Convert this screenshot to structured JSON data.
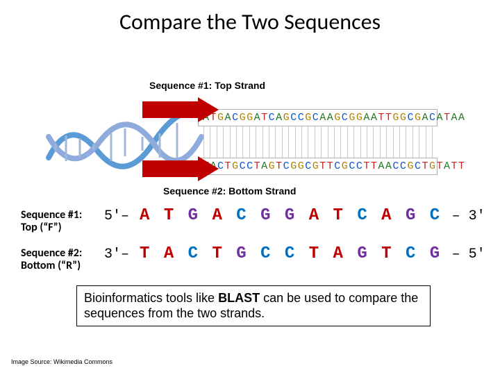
{
  "title": "Compare the Two Sequences",
  "figure": {
    "label_top": "Sequence #1: Top Strand",
    "label_bottom": "Sequence #2: Bottom Strand",
    "top_seq_raw": "ATGACGGATCAGCCGCAAGCGGAATTGGCGACATAA",
    "bot_seq_raw": "TACTGCCTAGTCGGCGTTCGCCTTAACCGCTGTATT",
    "arrow_color": "#c00000",
    "helix_color1": "#5b9bd5",
    "helix_color2": "#8faadc",
    "box_border": "#b0b0b0",
    "base_colors": {
      "A": "#227722",
      "T": "#cc2222",
      "G": "#b08000",
      "C": "#1155cc"
    }
  },
  "rows": [
    {
      "label_l1": "Sequence #1:",
      "label_l2": "Top (“F”)",
      "left_end": "5'–",
      "bases": [
        "A",
        "T",
        "G",
        "A",
        "C",
        "G",
        "G",
        "A",
        "T",
        "C",
        "A",
        "G",
        "C"
      ],
      "right_end": "– 3'"
    },
    {
      "label_l1": "Sequence #2:",
      "label_l2": "Bottom (“R”)",
      "left_end": "3'–",
      "bases": [
        "T",
        "A",
        "C",
        "T",
        "G",
        "C",
        "C",
        "T",
        "A",
        "G",
        "T",
        "C",
        "G"
      ],
      "right_end": "– 5'"
    }
  ],
  "big_base_colors": {
    "A": "#c00000",
    "T": "#c00000",
    "G": "#7030a0",
    "C": "#0070c0"
  },
  "info_line1": "Bioinformatics tools like ",
  "info_bold": "BLAST",
  "info_line2": " can be used to compare the sequences from the two strands.",
  "source": "Image Source: Wikimedia Commons"
}
